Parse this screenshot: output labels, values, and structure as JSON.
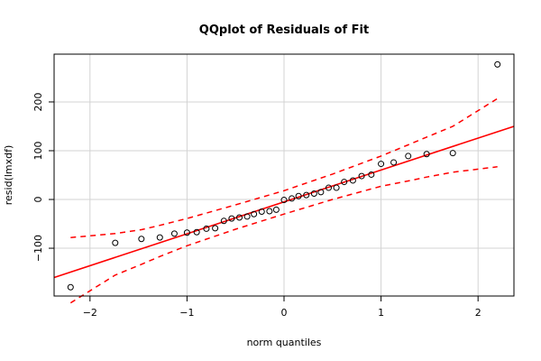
{
  "chart_data": {
    "type": "scatter",
    "title": "QQplot of Residuals of Fit",
    "xlabel": "norm quantiles",
    "ylabel": "resid(lmxdf)",
    "xlim": [
      -2.37,
      2.37
    ],
    "ylim": [
      -198,
      298
    ],
    "xticks": [
      -2,
      -1,
      0,
      1,
      2
    ],
    "yticks": [
      -100,
      0,
      100,
      200
    ],
    "grid": true,
    "legend": "none",
    "colors": {
      "points": "#000000",
      "fit_line": "#ff0000",
      "envelope": "#ff0000",
      "grid": "#d3d3d3",
      "frame": "#000000"
    },
    "points": [
      {
        "x": -2.2,
        "y": -180
      },
      {
        "x": -1.74,
        "y": -89
      },
      {
        "x": -1.47,
        "y": -81
      },
      {
        "x": -1.28,
        "y": -78
      },
      {
        "x": -1.13,
        "y": -70
      },
      {
        "x": -1.0,
        "y": -68
      },
      {
        "x": -0.9,
        "y": -67
      },
      {
        "x": -0.8,
        "y": -60
      },
      {
        "x": -0.71,
        "y": -59
      },
      {
        "x": -0.62,
        "y": -44
      },
      {
        "x": -0.54,
        "y": -39
      },
      {
        "x": -0.46,
        "y": -37
      },
      {
        "x": -0.38,
        "y": -35
      },
      {
        "x": -0.31,
        "y": -30
      },
      {
        "x": -0.23,
        "y": -25
      },
      {
        "x": -0.15,
        "y": -24
      },
      {
        "x": -0.08,
        "y": -21
      },
      {
        "x": 0.0,
        "y": -1
      },
      {
        "x": 0.08,
        "y": 2
      },
      {
        "x": 0.15,
        "y": 7
      },
      {
        "x": 0.23,
        "y": 9
      },
      {
        "x": 0.31,
        "y": 12
      },
      {
        "x": 0.38,
        "y": 15
      },
      {
        "x": 0.46,
        "y": 24
      },
      {
        "x": 0.54,
        "y": 24
      },
      {
        "x": 0.62,
        "y": 36
      },
      {
        "x": 0.71,
        "y": 39
      },
      {
        "x": 0.8,
        "y": 48
      },
      {
        "x": 0.9,
        "y": 51
      },
      {
        "x": 1.0,
        "y": 73
      },
      {
        "x": 1.13,
        "y": 76
      },
      {
        "x": 1.28,
        "y": 89
      },
      {
        "x": 1.47,
        "y": 93
      },
      {
        "x": 1.74,
        "y": 95
      },
      {
        "x": 2.2,
        "y": 277
      }
    ],
    "fit_line": {
      "x": [
        -2.37,
        2.37
      ],
      "y": [
        -160,
        150
      ]
    },
    "envelope_upper": {
      "x": [
        -2.2,
        -1.74,
        -1.47,
        -1.28,
        -1.0,
        -0.5,
        0.0,
        0.5,
        1.0,
        1.28,
        1.47,
        1.74,
        2.2
      ],
      "y": [
        -78,
        -70,
        -62,
        -53,
        -39,
        -11,
        18,
        52,
        89,
        112,
        128,
        150,
        207
      ]
    },
    "envelope_lower": {
      "x": [
        -2.2,
        -1.74,
        -1.47,
        -1.28,
        -1.0,
        -0.5,
        0.0,
        0.5,
        1.0,
        1.28,
        1.47,
        1.74,
        2.2
      ],
      "y": [
        -212,
        -155,
        -133,
        -117,
        -95,
        -61,
        -30,
        0,
        27,
        38,
        46,
        56,
        67
      ]
    }
  }
}
